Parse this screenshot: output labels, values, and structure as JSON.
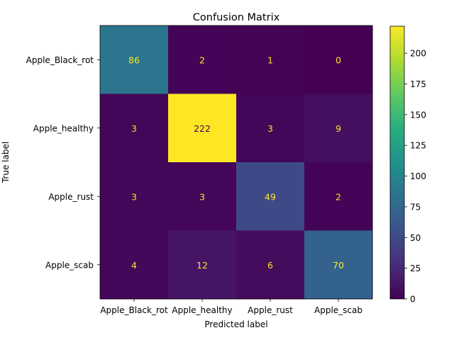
{
  "chart_data": {
    "type": "heatmap",
    "title": "Confusion Matrix",
    "xlabel": "Predicted label",
    "ylabel": "True label",
    "x_categories": [
      "Apple_Black_rot",
      "Apple_healthy",
      "Apple_rust",
      "Apple_scab"
    ],
    "y_categories": [
      "Apple_Black_rot",
      "Apple_healthy",
      "Apple_rust",
      "Apple_scab"
    ],
    "matrix": [
      [
        86,
        2,
        1,
        0
      ],
      [
        3,
        222,
        3,
        9
      ],
      [
        3,
        3,
        49,
        2
      ],
      [
        4,
        12,
        6,
        70
      ]
    ],
    "colormap": "viridis",
    "vmin": 0,
    "vmax": 222,
    "colorbar_ticks": [
      0,
      25,
      50,
      75,
      100,
      125,
      150,
      175,
      200
    ]
  }
}
